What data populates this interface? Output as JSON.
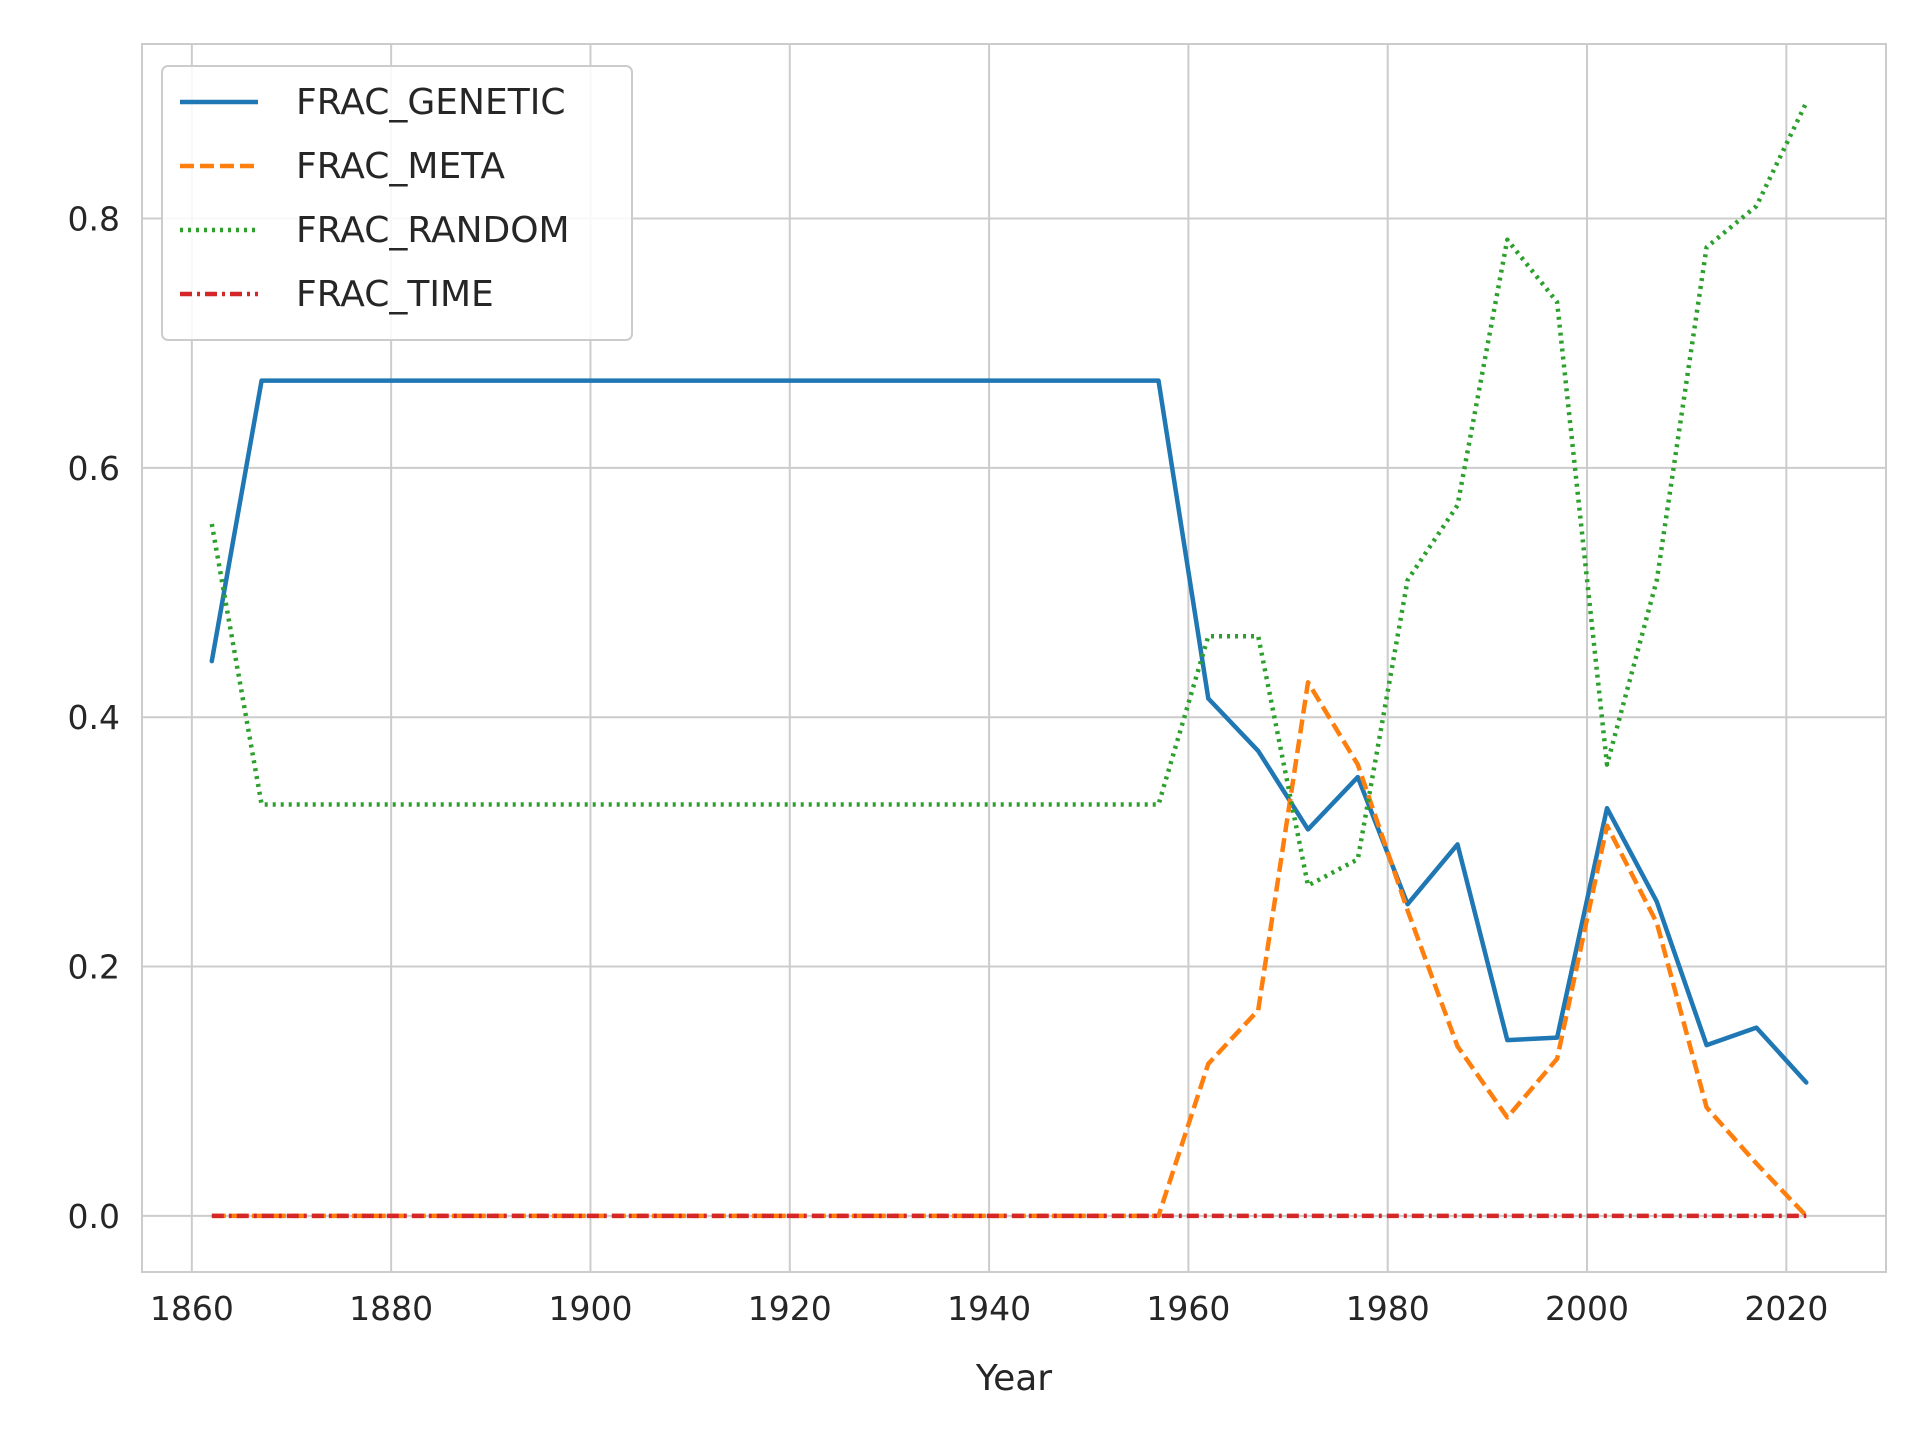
{
  "chart_data": {
    "type": "line",
    "title": "",
    "xlabel": "Year",
    "ylabel": "",
    "xlim": [
      1855,
      2030
    ],
    "ylim": [
      -0.045,
      0.94
    ],
    "xticks": [
      1860,
      1880,
      1900,
      1920,
      1940,
      1960,
      1980,
      2000,
      2020
    ],
    "xtick_labels": [
      "1860",
      "1880",
      "1900",
      "1920",
      "1940",
      "1960",
      "1980",
      "2000",
      "2020"
    ],
    "yticks": [
      0.0,
      0.2,
      0.4,
      0.6,
      0.8
    ],
    "ytick_labels": [
      "0.0",
      "0.2",
      "0.4",
      "0.6",
      "0.8"
    ],
    "grid": true,
    "legend_position": "top-left",
    "x": [
      1862,
      1867,
      1957,
      1962,
      1967,
      1972,
      1977,
      1982,
      1987,
      1992,
      1997,
      2002,
      2007,
      2012,
      2017,
      2022
    ],
    "series": [
      {
        "name": "FRAC_GENETIC",
        "color": "#1f77b4",
        "dash": "solid",
        "values": [
          0.445,
          0.67,
          0.67,
          0.415,
          0.373,
          0.31,
          0.352,
          0.25,
          0.298,
          0.141,
          0.143,
          0.327,
          0.252,
          0.137,
          0.151,
          0.107
        ]
      },
      {
        "name": "FRAC_META",
        "color": "#ff7f0e",
        "dash": "dashed",
        "values": [
          0.0,
          0.0,
          0.0,
          0.122,
          0.165,
          0.428,
          0.362,
          0.245,
          0.136,
          0.079,
          0.126,
          0.313,
          0.235,
          0.087,
          0.042,
          0.0
        ]
      },
      {
        "name": "FRAC_RANDOM",
        "color": "#2ca02c",
        "dash": "dotted",
        "values": [
          0.555,
          0.33,
          0.33,
          0.465,
          0.465,
          0.265,
          0.286,
          0.51,
          0.57,
          0.783,
          0.733,
          0.362,
          0.51,
          0.777,
          0.81,
          0.893
        ]
      },
      {
        "name": "FRAC_TIME",
        "color": "#d62728",
        "dash": "dashdot",
        "values": [
          0.0,
          0.0,
          0.0,
          0.0,
          0.0,
          0.0,
          0.0,
          0.0,
          0.0,
          0.0,
          0.0,
          0.0,
          0.0,
          0.0,
          0.0,
          0.0
        ]
      }
    ]
  }
}
